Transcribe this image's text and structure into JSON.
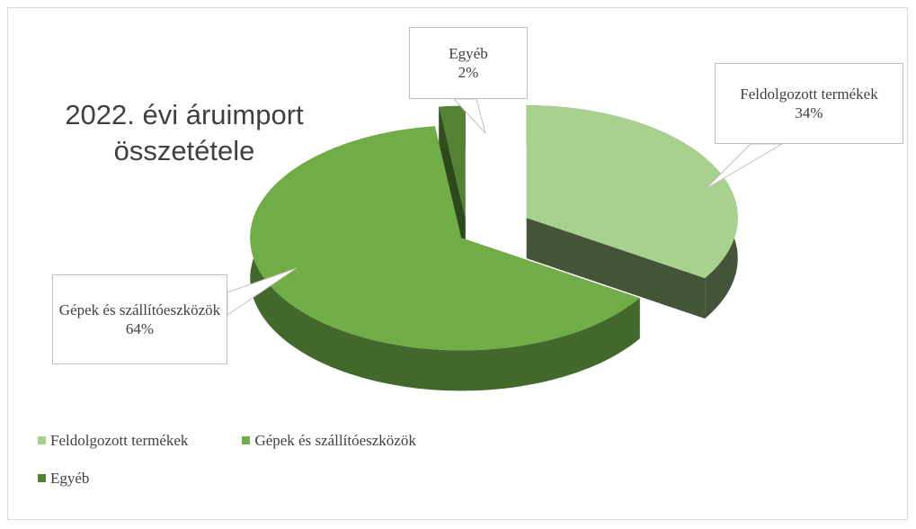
{
  "chart_data": {
    "type": "pie",
    "title": "2022. évi áruimport összetétele",
    "categories": [
      "Feldolgozott termékek",
      "Gépek és szállítóeszközök",
      "Egyéb"
    ],
    "values": [
      34,
      64,
      2
    ],
    "value_labels": [
      "34%",
      "64%",
      "2%"
    ],
    "colors": [
      "#a9d18e",
      "#70ad47",
      "#548235"
    ],
    "legend": "bottom"
  }
}
